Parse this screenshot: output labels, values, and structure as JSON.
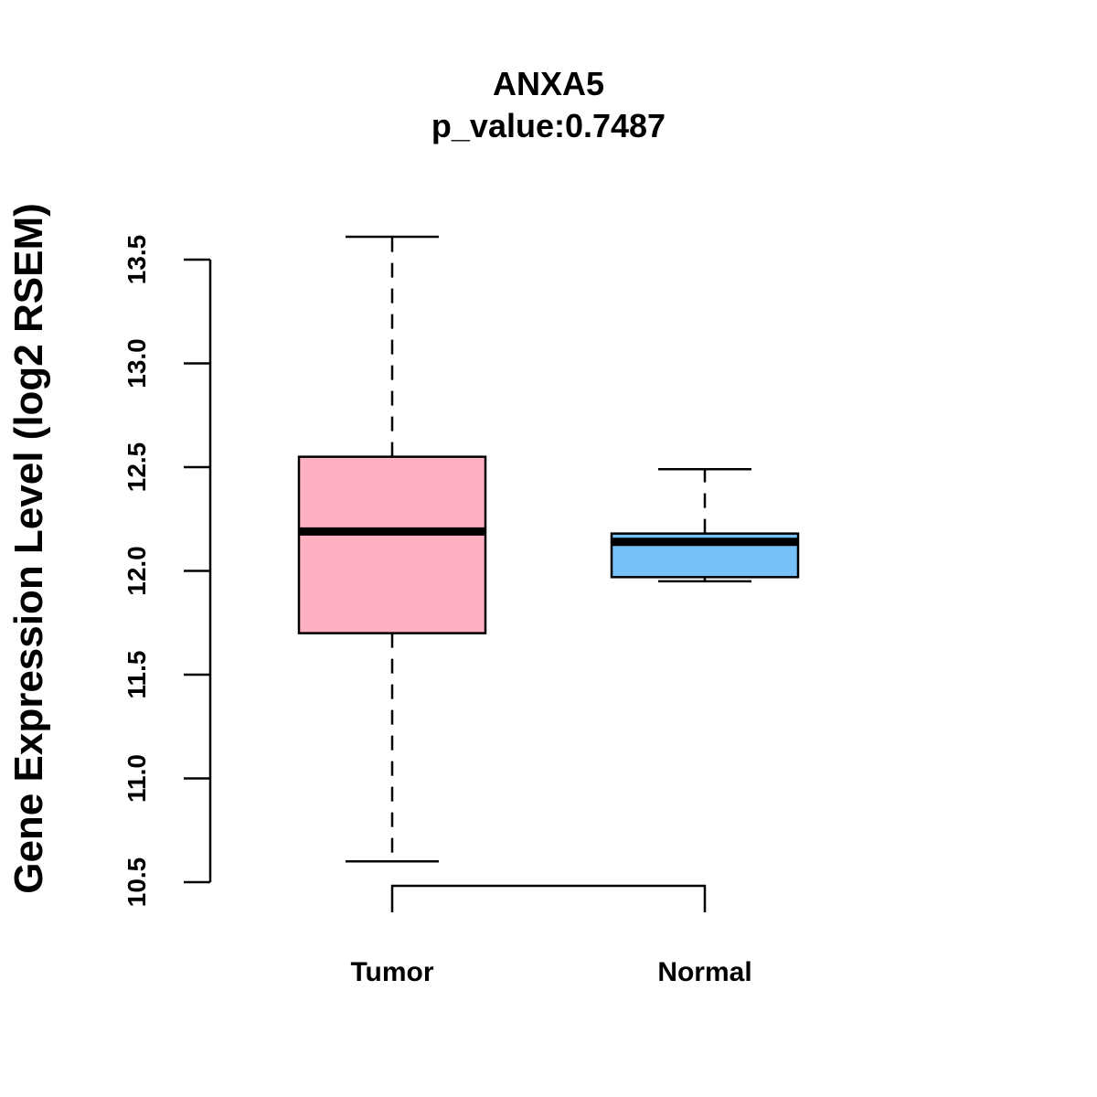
{
  "chart_data": {
    "type": "boxplot",
    "title": "ANXA5",
    "subtitle": "p_value:0.7487",
    "xlabel": "",
    "ylabel": "Gene Expression Level (log2 RSEM)",
    "ylim": [
      10.5,
      13.5
    ],
    "yticks": [
      10.5,
      11.0,
      11.5,
      12.0,
      12.5,
      13.0,
      13.5
    ],
    "ytick_labels": [
      "10.5",
      "11.0",
      "11.5",
      "12.0",
      "12.5",
      "13.0",
      "13.5"
    ],
    "categories": [
      "Tumor",
      "Normal"
    ],
    "boxes": [
      {
        "name": "Tumor",
        "min": 10.6,
        "q1": 11.7,
        "median": 12.19,
        "q3": 12.55,
        "max": 13.61,
        "color": "#FFB0C2"
      },
      {
        "name": "Normal",
        "min": 11.95,
        "q1": 11.97,
        "median": 12.14,
        "q3": 12.18,
        "max": 12.49,
        "color": "#78C0F8"
      }
    ],
    "comparison_bracket": [
      "Tumor",
      "Normal"
    ],
    "grid": false
  }
}
